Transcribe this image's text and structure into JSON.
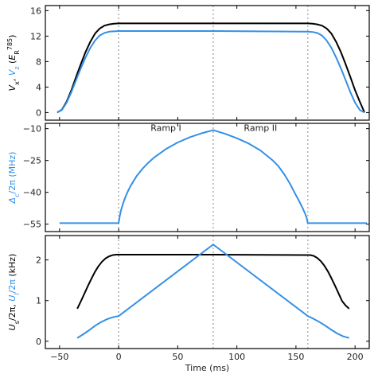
{
  "chart_data": {
    "type": "line",
    "shared_x": {
      "label": "Time (ms)",
      "ticks": [
        -50,
        0,
        50,
        100,
        150,
        200
      ],
      "tick_labels": [
        "−50",
        "0",
        "50",
        "100",
        "150",
        "200"
      ],
      "range": [
        -62,
        212
      ]
    },
    "markers": {
      "x": [
        0,
        80,
        160
      ],
      "style": "dotted vertical lines"
    },
    "colors": {
      "black": "#000000",
      "blue": "#3490e6",
      "marker": "#b4b4b4"
    },
    "panels": [
      {
        "id": "top",
        "ylim": [
          -1.2,
          16.8
        ],
        "yticks": [
          0,
          4,
          8,
          12,
          16
        ],
        "ytick_labels": [
          "0",
          "4",
          "8",
          "12",
          "16"
        ],
        "ylabel": {
          "parts": [
            {
              "text": "V",
              "color": "black",
              "italic": true
            },
            {
              "text": "x",
              "color": "black",
              "sub": true
            },
            {
              "text": ", ",
              "color": "black"
            },
            {
              "text": "V",
              "color": "blue",
              "italic": true
            },
            {
              "text": "z",
              "color": "blue",
              "sub": true
            },
            {
              "text": " (",
              "color": "black"
            },
            {
              "text": "E",
              "color": "black",
              "italic": true
            },
            {
              "text": "R",
              "color": "black",
              "sub": true
            },
            {
              "text": "785",
              "color": "black",
              "sup": true
            },
            {
              "text": ")",
              "color": "black"
            }
          ]
        },
        "series": [
          {
            "color": "black",
            "x": [
              -52,
              -48,
              -44,
              -40,
              -36,
              -32,
              -28,
              -24,
              -20,
              -16,
              -12,
              -8,
              -4,
              0,
              40,
              80,
              120,
              160,
              164,
              168,
              172,
              176,
              180,
              184,
              188,
              192,
              196,
              200,
              204,
              208
            ],
            "y": [
              0.0,
              0.45,
              1.7,
              3.5,
              5.6,
              7.6,
              9.5,
              11.1,
              12.4,
              13.2,
              13.65,
              13.85,
              13.95,
              14.0,
              14.0,
              14.0,
              14.0,
              14.0,
              13.95,
              13.85,
              13.65,
              13.2,
              12.4,
              11.1,
              9.5,
              7.6,
              5.6,
              3.5,
              1.7,
              0.0
            ]
          },
          {
            "color": "blue",
            "x": [
              -52,
              -48,
              -44,
              -40,
              -36,
              -32,
              -28,
              -24,
              -20,
              -16,
              -12,
              -8,
              -4,
              0,
              40,
              80,
              120,
              160,
              164,
              168,
              172,
              176,
              180,
              184,
              188,
              192,
              196,
              200,
              204,
              208
            ],
            "y": [
              0.0,
              0.4,
              1.55,
              3.2,
              5.1,
              6.95,
              8.65,
              10.15,
              11.3,
              12.1,
              12.5,
              12.7,
              12.75,
              12.8,
              12.8,
              12.8,
              12.75,
              12.7,
              12.65,
              12.5,
              12.1,
              11.3,
              10.15,
              8.65,
              6.95,
              5.1,
              3.2,
              1.55,
              0.4,
              0.0
            ]
          }
        ]
      },
      {
        "id": "middle",
        "ylim": [
          -58.5,
          -7.5
        ],
        "yticks": [
          -10,
          -25,
          -40,
          -55
        ],
        "ytick_labels": [
          "−10",
          "−25",
          "−40",
          "−55"
        ],
        "ylabel": {
          "parts": [
            {
              "text": "Δ",
              "color": "blue",
              "italic": true
            },
            {
              "text": "c",
              "color": "blue",
              "sub": true
            },
            {
              "text": "/2π  (MHz)",
              "color": "blue"
            }
          ]
        },
        "annotations": [
          {
            "text": "Ramp I",
            "x": 40,
            "y": -11
          },
          {
            "text": "Ramp II",
            "x": 120,
            "y": -11
          }
        ],
        "series": [
          {
            "color": "blue",
            "x": [
              -50,
              -5,
              0,
              1,
              2,
              4,
              6,
              8,
              10,
              15,
              20,
              25,
              30,
              40,
              50,
              60,
              70,
              80,
              90,
              100,
              110,
              120,
              130,
              135,
              140,
              145,
              150,
              152,
              154,
              156,
              158,
              159,
              160,
              165,
              210
            ],
            "y": [
              -54.5,
              -54.5,
              -54.5,
              -51,
              -48.5,
              -44.8,
              -41.8,
              -39.3,
              -37.1,
              -32.5,
              -29.0,
              -26.1,
              -23.6,
              -19.6,
              -16.5,
              -14.1,
              -12.2,
              -10.7,
              -12.4,
              -14.5,
              -17.0,
              -20.3,
              -24.8,
              -27.6,
              -31.4,
              -36.0,
              -41.4,
              -43.4,
              -45.6,
              -47.9,
              -50.4,
              -52.0,
              -54.5,
              -54.5,
              -54.5
            ]
          }
        ]
      },
      {
        "id": "bottom",
        "ylim": [
          -0.18,
          2.6
        ],
        "yticks": [
          0,
          1,
          2
        ],
        "ytick_labels": [
          "0",
          "1",
          "2"
        ],
        "ylabel": {
          "parts": [
            {
              "text": "U",
              "color": "black",
              "italic": true
            },
            {
              "text": "s",
              "color": "black",
              "sub": true
            },
            {
              "text": "/2π, ",
              "color": "black"
            },
            {
              "text": "U",
              "color": "blue",
              "italic": true
            },
            {
              "text": "l",
              "color": "blue",
              "sub": true
            },
            {
              "text": "/2π",
              "color": "blue"
            },
            {
              "text": "  (kHz)",
              "color": "black"
            }
          ]
        },
        "series": [
          {
            "color": "black",
            "x": [
              -35,
              -32,
              -29,
              -26,
              -23,
              -20,
              -17,
              -14,
              -11,
              -8,
              -5,
              -2,
              0,
              40,
              80,
              120,
              160,
              162,
              165,
              168,
              171,
              174,
              177,
              180,
              183,
              186,
              189,
              192,
              195
            ],
            "y": [
              0.8,
              0.98,
              1.17,
              1.36,
              1.54,
              1.71,
              1.85,
              1.96,
              2.04,
              2.09,
              2.12,
              2.13,
              2.13,
              2.13,
              2.13,
              2.125,
              2.12,
              2.12,
              2.1,
              2.05,
              1.97,
              1.86,
              1.72,
              1.55,
              1.37,
              1.18,
              0.99,
              0.88,
              0.8
            ]
          },
          {
            "color": "blue",
            "x": [
              -35,
              -30,
              -25,
              -20,
              -15,
              -10,
              -5,
              0,
              80,
              160,
              165,
              170,
              175,
              180,
              185,
              190,
              195
            ],
            "y": [
              0.08,
              0.17,
              0.27,
              0.38,
              0.47,
              0.54,
              0.59,
              0.62,
              2.38,
              0.62,
              0.55,
              0.47,
              0.38,
              0.28,
              0.19,
              0.12,
              0.08
            ]
          }
        ]
      }
    ]
  }
}
